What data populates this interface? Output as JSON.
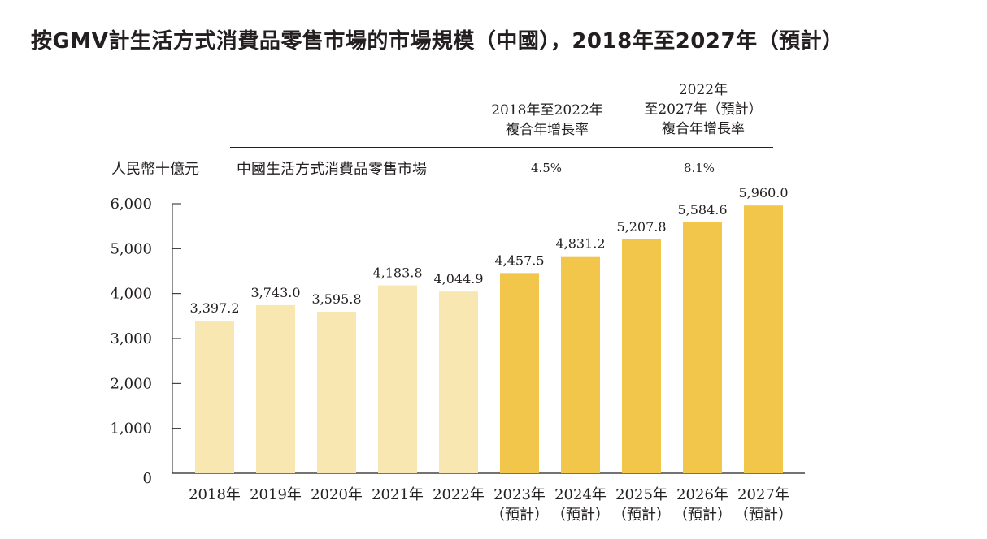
{
  "chart_title": "按GMV計生活方式消費品零售市場的市場規模（中國），2018年至2027年（預計）",
  "header": {
    "cagr_1_lines": [
      "2018年至2022年",
      "複合年增長率"
    ],
    "cagr_2_lines": [
      "2022年",
      "至2027年（預計）",
      "複合年增長率"
    ],
    "unit_label": "人民幣十億元",
    "market_label": "中國生活方式消費品零售市場",
    "cagr_1_value": "4.5%",
    "cagr_2_value": "8.1%"
  },
  "chart_data": {
    "type": "bar",
    "categories": [
      "2018年",
      "2019年",
      "2020年",
      "2021年",
      "2022年",
      "2023年",
      "2024年",
      "2025年",
      "2026年",
      "2027年"
    ],
    "category_sublabels": [
      "",
      "",
      "",
      "",
      "",
      "（預計）",
      "（預計）",
      "（預計）",
      "（預計）",
      "（預計）"
    ],
    "values": [
      3397.2,
      3743.0,
      3595.8,
      4183.8,
      4044.9,
      4457.5,
      4831.2,
      5207.8,
      5584.6,
      5960.0
    ],
    "value_labels": [
      "3,397.2",
      "3,743.0",
      "3,595.8",
      "4,183.8",
      "4,044.9",
      "4,457.5",
      "4,831.2",
      "5,207.8",
      "5,584.6",
      "5,960.0"
    ],
    "ylim": [
      0,
      6000
    ],
    "yticks": [
      0,
      1000,
      2000,
      3000,
      4000,
      5000,
      6000
    ],
    "ytick_labels": [
      "0",
      "1,000",
      "2,000",
      "3,000",
      "4,000",
      "5,000",
      "6,000"
    ],
    "colors": {
      "historical": "#f8e7b0",
      "forecast": "#f2c64a",
      "axis": "#231f20"
    },
    "forecast_start_index": 5,
    "xlabel": "",
    "ylabel": "",
    "grid": false
  }
}
